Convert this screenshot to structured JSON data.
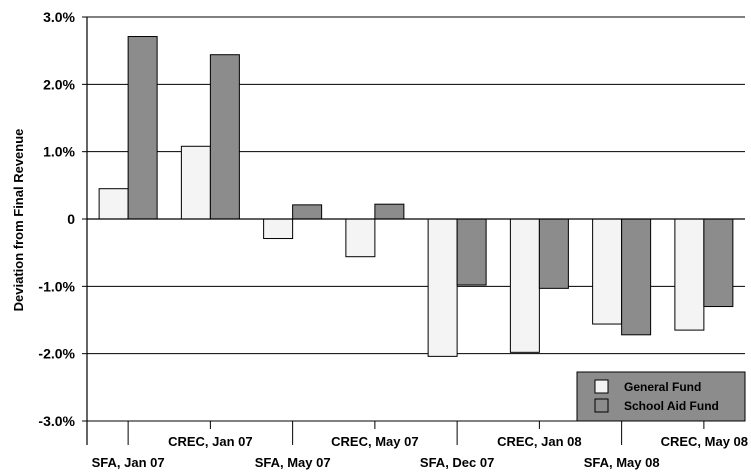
{
  "chart_data": {
    "type": "bar",
    "title": "",
    "xlabel": "",
    "ylabel": "Deviation from Final Revenue",
    "ylim": [
      -3.0,
      3.0
    ],
    "yticks": [
      {
        "value": 3.0,
        "label": "3.0%"
      },
      {
        "value": 2.0,
        "label": "2.0%"
      },
      {
        "value": 1.0,
        "label": "1.0%"
      },
      {
        "value": 0,
        "label": "0"
      },
      {
        "value": -1.0,
        "label": "-1.0%"
      },
      {
        "value": -2.0,
        "label": "-2.0%"
      },
      {
        "value": -3.0,
        "label": "-3.0%"
      }
    ],
    "categories": [
      "SFA, Jan 07",
      "CREC, Jan 07",
      "SFA, May 07",
      "CREC, May 07",
      "SFA, Dec 07",
      "CREC, Jan 08",
      "SFA, May 08",
      "CREC, May 08"
    ],
    "series": [
      {
        "name": "General Fund",
        "color": "#f4f4f4",
        "values": [
          0.45,
          1.08,
          -0.29,
          -0.56,
          -2.04,
          -1.98,
          -1.56,
          -1.65
        ]
      },
      {
        "name": "School Aid Fund",
        "color": "#8c8c8c",
        "values": [
          2.71,
          2.44,
          0.21,
          0.22,
          -0.98,
          -1.03,
          -1.72,
          -1.3
        ]
      }
    ],
    "grid": true,
    "legend_position": "bottom-right",
    "legend_background": "#8c8c8c"
  }
}
